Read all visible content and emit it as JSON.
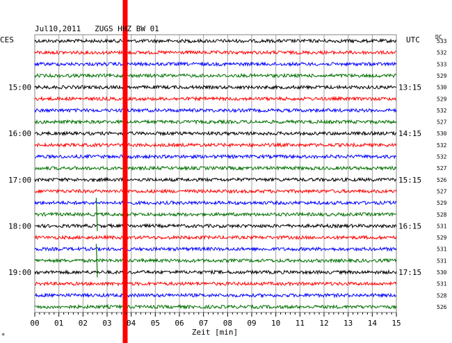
{
  "chart_data": {
    "type": "line",
    "title": "Jul10,2011   ZUGS HHZ BW 01",
    "left_axis_label": "CES",
    "right_axis_label": "UTC",
    "dc_label": "DC",
    "xlabel": "Zeit [min]",
    "xlim": [
      0,
      15
    ],
    "x_ticks": [
      "00",
      "01",
      "02",
      "03",
      "04",
      "05",
      "06",
      "07",
      "08",
      "09",
      "10",
      "11",
      "12",
      "13",
      "14",
      "15"
    ],
    "left_time_labels": [
      {
        "row": 4,
        "label": "15:00"
      },
      {
        "row": 8,
        "label": "16:00"
      },
      {
        "row": 12,
        "label": "17:00"
      },
      {
        "row": 16,
        "label": "18:00"
      },
      {
        "row": 20,
        "label": "19:00"
      }
    ],
    "right_time_labels": [
      {
        "row": 4,
        "label": "13:15"
      },
      {
        "row": 8,
        "label": "14:15"
      },
      {
        "row": 12,
        "label": "15:15"
      },
      {
        "row": 16,
        "label": "16:15"
      },
      {
        "row": 20,
        "label": "17:15"
      }
    ],
    "trace_color_cycle": [
      "#000000",
      "#ff0000",
      "#0000ff",
      "#007000"
    ],
    "dc_values": [
      "533",
      "532",
      "533",
      "529",
      "530",
      "529",
      "532",
      "527",
      "530",
      "532",
      "532",
      "527",
      "526",
      "527",
      "529",
      "528",
      "531",
      "529",
      "531",
      "531",
      "530",
      "531",
      "528",
      "526"
    ],
    "marker": {
      "x_min": 3.75,
      "color": "#ff0000"
    },
    "events": [
      {
        "row": 15,
        "x_min": 2.55
      },
      {
        "row": 19,
        "x_min": 2.55
      }
    ],
    "grid": true,
    "footer_mark": "*"
  }
}
